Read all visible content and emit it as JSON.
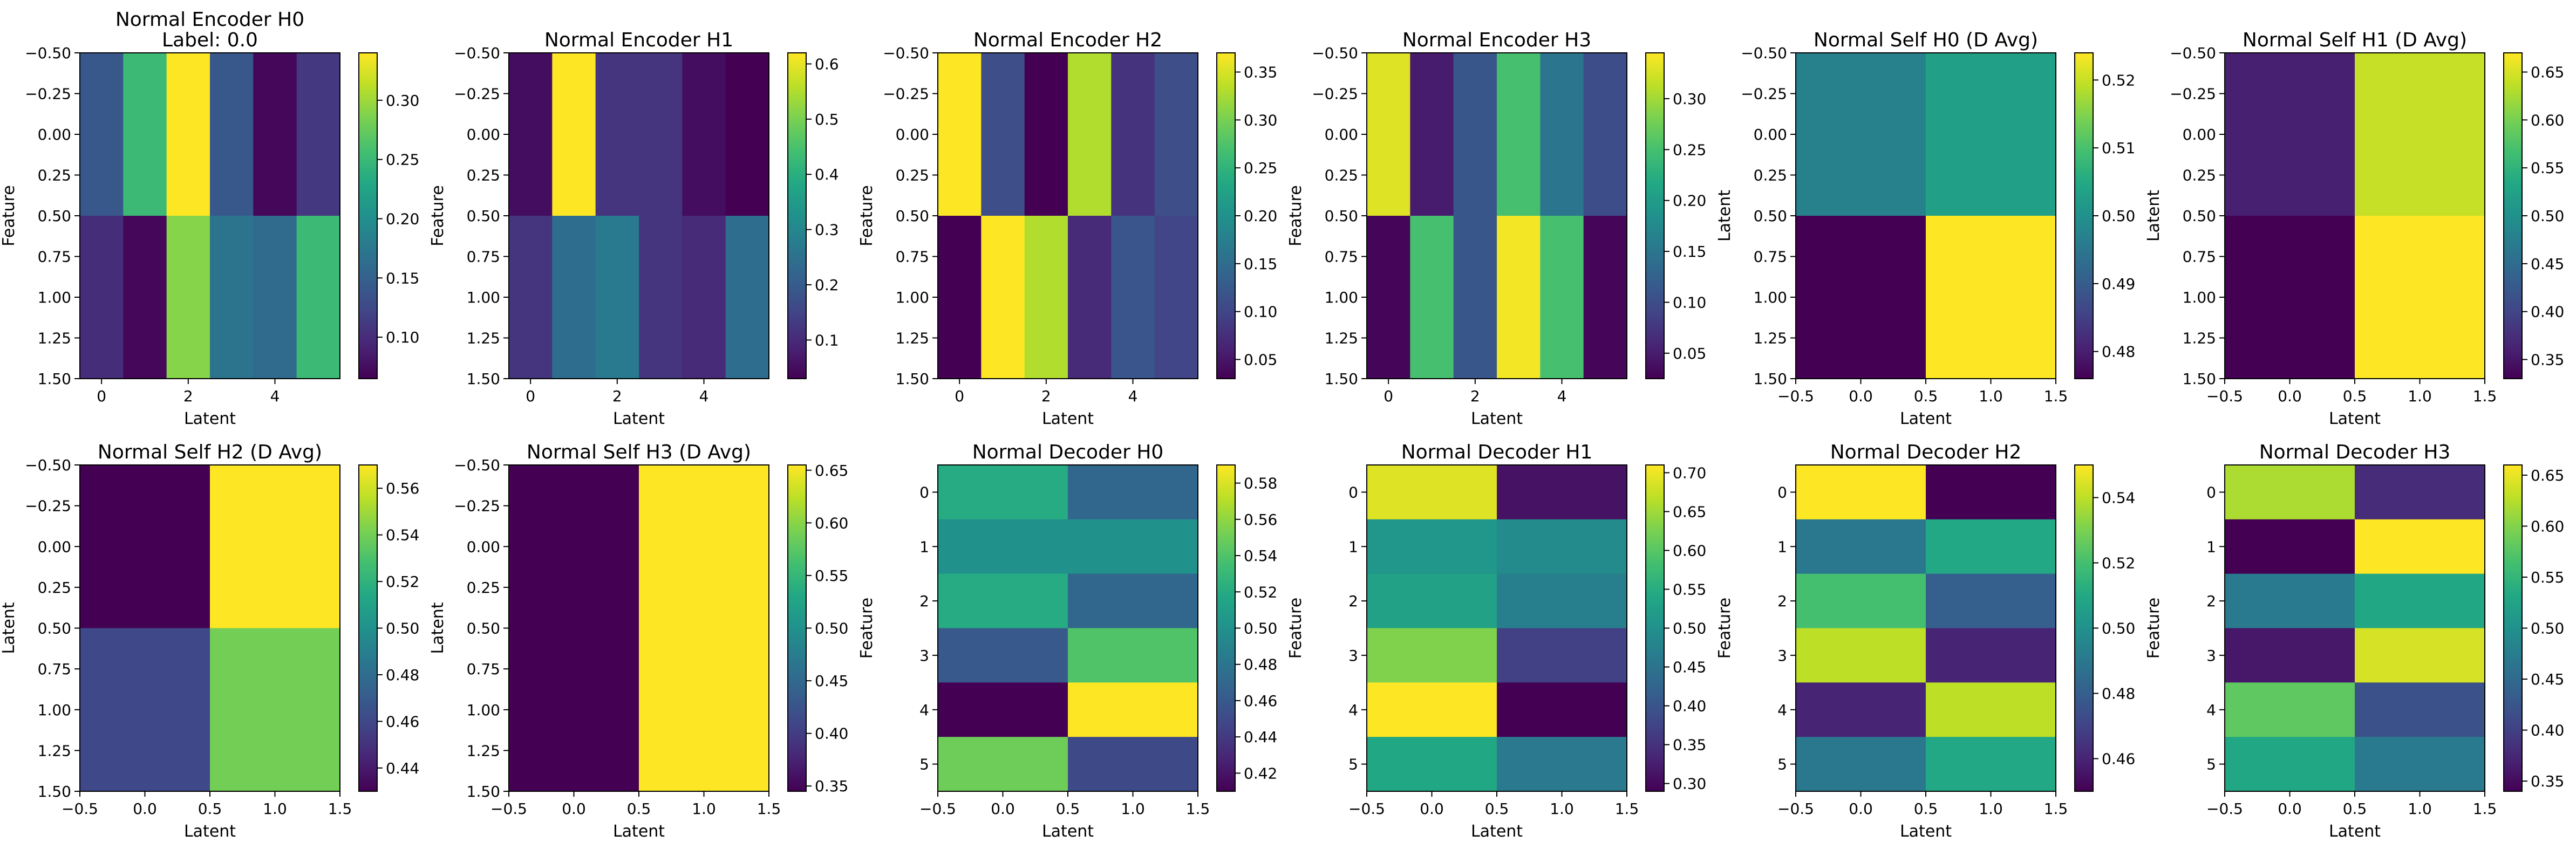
{
  "colormap": "viridis",
  "chart_data": [
    {
      "type": "heatmap",
      "title": "Normal Encoder H0",
      "subtitle": "Label: 0.0",
      "xlabel": "Latent",
      "ylabel": "Feature",
      "xlim": [
        -0.5,
        5.5
      ],
      "ylim": [
        1.5,
        -0.5
      ],
      "xticks": [
        0,
        2,
        4
      ],
      "xtick_labels": [
        "0",
        "2",
        "4"
      ],
      "yticks": [
        -0.5,
        -0.25,
        0,
        0.25,
        0.5,
        0.75,
        1,
        1.25,
        1.5
      ],
      "ytick_labels": [
        "−0.50",
        "−0.25",
        "0.00",
        "0.25",
        "0.50",
        "0.75",
        "1.00",
        "1.25",
        "1.50"
      ],
      "values": [
        [
          0.14,
          0.25,
          0.34,
          0.14,
          0.07,
          0.11
        ],
        [
          0.1,
          0.07,
          0.29,
          0.17,
          0.16,
          0.25
        ]
      ],
      "vmin": 0.065,
      "vmax": 0.34,
      "cbar_ticks": [
        0.1,
        0.15,
        0.2,
        0.25,
        0.3
      ],
      "cbar_labels": [
        "0.10",
        "0.15",
        "0.20",
        "0.25",
        "0.30"
      ]
    },
    {
      "type": "heatmap",
      "title": "Normal Encoder H1",
      "xlabel": "Latent",
      "ylabel": "Feature",
      "xlim": [
        -0.5,
        5.5
      ],
      "ylim": [
        1.5,
        -0.5
      ],
      "xticks": [
        0,
        2,
        4
      ],
      "xtick_labels": [
        "0",
        "2",
        "4"
      ],
      "yticks": [
        -0.5,
        -0.25,
        0,
        0.25,
        0.5,
        0.75,
        1,
        1.25,
        1.5
      ],
      "ytick_labels": [
        "−0.50",
        "−0.25",
        "0.00",
        "0.25",
        "0.50",
        "0.75",
        "1.00",
        "1.25",
        "1.50"
      ],
      "values": [
        [
          0.05,
          0.62,
          0.12,
          0.12,
          0.05,
          0.03
        ],
        [
          0.12,
          0.24,
          0.27,
          0.12,
          0.1,
          0.24
        ]
      ],
      "vmin": 0.03,
      "vmax": 0.62,
      "cbar_ticks": [
        0.1,
        0.2,
        0.3,
        0.4,
        0.5,
        0.6
      ],
      "cbar_labels": [
        "0.1",
        "0.2",
        "0.3",
        "0.4",
        "0.5",
        "0.6"
      ]
    },
    {
      "type": "heatmap",
      "title": "Normal Encoder H2",
      "xlabel": "Latent",
      "ylabel": "Feature",
      "xlim": [
        -0.5,
        5.5
      ],
      "ylim": [
        1.5,
        -0.5
      ],
      "xticks": [
        0,
        2,
        4
      ],
      "xtick_labels": [
        "0",
        "2",
        "4"
      ],
      "yticks": [
        -0.5,
        -0.25,
        0,
        0.25,
        0.5,
        0.75,
        1,
        1.25,
        1.5
      ],
      "ytick_labels": [
        "−0.50",
        "−0.25",
        "0.00",
        "0.25",
        "0.50",
        "0.75",
        "1.00",
        "1.25",
        "1.50"
      ],
      "values": [
        [
          0.37,
          0.11,
          0.03,
          0.33,
          0.08,
          0.11
        ],
        [
          0.03,
          0.37,
          0.33,
          0.07,
          0.12,
          0.1
        ]
      ],
      "vmin": 0.03,
      "vmax": 0.37,
      "cbar_ticks": [
        0.05,
        0.1,
        0.15,
        0.2,
        0.25,
        0.3,
        0.35
      ],
      "cbar_labels": [
        "0.05",
        "0.10",
        "0.15",
        "0.20",
        "0.25",
        "0.30",
        "0.35"
      ]
    },
    {
      "type": "heatmap",
      "title": "Normal Encoder H3",
      "xlabel": "Latent",
      "ylabel": "Feature",
      "xlim": [
        -0.5,
        5.5
      ],
      "ylim": [
        1.5,
        -0.5
      ],
      "xticks": [
        0,
        2,
        4
      ],
      "xtick_labels": [
        "0",
        "2",
        "4"
      ],
      "yticks": [
        -0.5,
        -0.25,
        0,
        0.25,
        0.5,
        0.75,
        1,
        1.25,
        1.5
      ],
      "ytick_labels": [
        "−0.50",
        "−0.25",
        "0.00",
        "0.25",
        "0.50",
        "0.75",
        "1.00",
        "1.25",
        "1.50"
      ],
      "values": [
        [
          0.33,
          0.05,
          0.11,
          0.25,
          0.15,
          0.1
        ],
        [
          0.03,
          0.25,
          0.11,
          0.34,
          0.25,
          0.03
        ]
      ],
      "vmin": 0.025,
      "vmax": 0.345,
      "cbar_ticks": [
        0.05,
        0.1,
        0.15,
        0.2,
        0.25,
        0.3
      ],
      "cbar_labels": [
        "0.05",
        "0.10",
        "0.15",
        "0.20",
        "0.25",
        "0.30"
      ]
    },
    {
      "type": "heatmap",
      "title": "Normal Self H0 (D Avg)",
      "xlabel": "Latent",
      "ylabel": "Latent",
      "xlim": [
        -0.5,
        1.5
      ],
      "ylim": [
        1.5,
        -0.5
      ],
      "xticks": [
        -0.5,
        0,
        0.5,
        1,
        1.5
      ],
      "xtick_labels": [
        "−0.5",
        "0.0",
        "0.5",
        "1.0",
        "1.5"
      ],
      "yticks": [
        -0.5,
        -0.25,
        0,
        0.25,
        0.5,
        0.75,
        1,
        1.25,
        1.5
      ],
      "ytick_labels": [
        "−0.50",
        "−0.25",
        "0.00",
        "0.25",
        "0.50",
        "0.75",
        "1.00",
        "1.25",
        "1.50"
      ],
      "values": [
        [
          0.497,
          0.503
        ],
        [
          0.476,
          0.524
        ]
      ],
      "vmin": 0.476,
      "vmax": 0.524,
      "cbar_ticks": [
        0.48,
        0.49,
        0.5,
        0.51,
        0.52
      ],
      "cbar_labels": [
        "0.48",
        "0.49",
        "0.50",
        "0.51",
        "0.52"
      ]
    },
    {
      "type": "heatmap",
      "title": "Normal Self H1 (D Avg)",
      "xlabel": "Latent",
      "ylabel": "Latent",
      "xlim": [
        -0.5,
        1.5
      ],
      "ylim": [
        1.5,
        -0.5
      ],
      "xticks": [
        -0.5,
        0,
        0.5,
        1,
        1.5
      ],
      "xtick_labels": [
        "−0.5",
        "0.0",
        "0.5",
        "1.0",
        "1.5"
      ],
      "yticks": [
        -0.5,
        -0.25,
        0,
        0.25,
        0.5,
        0.75,
        1,
        1.25,
        1.5
      ],
      "ytick_labels": [
        "−0.50",
        "−0.25",
        "0.00",
        "0.25",
        "0.50",
        "0.75",
        "1.00",
        "1.25",
        "1.50"
      ],
      "values": [
        [
          0.36,
          0.64
        ],
        [
          0.33,
          0.67
        ]
      ],
      "vmin": 0.33,
      "vmax": 0.67,
      "cbar_ticks": [
        0.35,
        0.4,
        0.45,
        0.5,
        0.55,
        0.6,
        0.65
      ],
      "cbar_labels": [
        "0.35",
        "0.40",
        "0.45",
        "0.50",
        "0.55",
        "0.60",
        "0.65"
      ]
    },
    {
      "type": "heatmap",
      "title": "Normal Self H2 (D Avg)",
      "xlabel": "Latent",
      "ylabel": "Latent",
      "xlim": [
        -0.5,
        1.5
      ],
      "ylim": [
        1.5,
        -0.5
      ],
      "xticks": [
        -0.5,
        0,
        0.5,
        1,
        1.5
      ],
      "xtick_labels": [
        "−0.5",
        "0.0",
        "0.5",
        "1.0",
        "1.5"
      ],
      "yticks": [
        -0.5,
        -0.25,
        0,
        0.25,
        0.5,
        0.75,
        1,
        1.25,
        1.5
      ],
      "ytick_labels": [
        "−0.50",
        "−0.25",
        "0.00",
        "0.25",
        "0.50",
        "0.75",
        "1.00",
        "1.25",
        "1.50"
      ],
      "values": [
        [
          0.43,
          0.57
        ],
        [
          0.46,
          0.54
        ]
      ],
      "vmin": 0.43,
      "vmax": 0.57,
      "cbar_ticks": [
        0.44,
        0.46,
        0.48,
        0.5,
        0.52,
        0.54,
        0.56
      ],
      "cbar_labels": [
        "0.44",
        "0.46",
        "0.48",
        "0.50",
        "0.52",
        "0.54",
        "0.56"
      ]
    },
    {
      "type": "heatmap",
      "title": "Normal Self H3 (D Avg)",
      "xlabel": "Latent",
      "ylabel": "Latent",
      "xlim": [
        -0.5,
        1.5
      ],
      "ylim": [
        1.5,
        -0.5
      ],
      "xticks": [
        -0.5,
        0,
        0.5,
        1,
        1.5
      ],
      "xtick_labels": [
        "−0.5",
        "0.0",
        "0.5",
        "1.0",
        "1.5"
      ],
      "yticks": [
        -0.5,
        -0.25,
        0,
        0.25,
        0.5,
        0.75,
        1,
        1.25,
        1.5
      ],
      "ytick_labels": [
        "−0.50",
        "−0.25",
        "0.00",
        "0.25",
        "0.50",
        "0.75",
        "1.00",
        "1.25",
        "1.50"
      ],
      "values": [
        [
          0.345,
          0.655
        ],
        [
          0.345,
          0.655
        ]
      ],
      "vmin": 0.345,
      "vmax": 0.655,
      "cbar_ticks": [
        0.35,
        0.4,
        0.45,
        0.5,
        0.55,
        0.6,
        0.65
      ],
      "cbar_labels": [
        "0.35",
        "0.40",
        "0.45",
        "0.50",
        "0.55",
        "0.60",
        "0.65"
      ]
    },
    {
      "type": "heatmap",
      "title": "Normal Decoder H0",
      "xlabel": "Latent",
      "ylabel": "Feature",
      "xlim": [
        -0.5,
        1.5
      ],
      "ylim": [
        5.5,
        -0.5
      ],
      "xticks": [
        -0.5,
        0,
        0.5,
        1,
        1.5
      ],
      "xtick_labels": [
        "−0.5",
        "0.0",
        "0.5",
        "1.0",
        "1.5"
      ],
      "yticks": [
        0,
        1,
        2,
        3,
        4,
        5
      ],
      "ytick_labels": [
        "0",
        "1",
        "2",
        "3",
        "4",
        "5"
      ],
      "values": [
        [
          0.52,
          0.47
        ],
        [
          0.5,
          0.5
        ],
        [
          0.52,
          0.47
        ],
        [
          0.46,
          0.54
        ],
        [
          0.41,
          0.59
        ],
        [
          0.55,
          0.45
        ]
      ],
      "vmin": 0.41,
      "vmax": 0.59,
      "cbar_ticks": [
        0.42,
        0.44,
        0.46,
        0.48,
        0.5,
        0.52,
        0.54,
        0.56,
        0.58
      ],
      "cbar_labels": [
        "0.42",
        "0.44",
        "0.46",
        "0.48",
        "0.50",
        "0.52",
        "0.54",
        "0.56",
        "0.58"
      ]
    },
    {
      "type": "heatmap",
      "title": "Normal Decoder H1",
      "xlabel": "Latent",
      "ylabel": "Feature",
      "xlim": [
        -0.5,
        1.5
      ],
      "ylim": [
        5.5,
        -0.5
      ],
      "xticks": [
        -0.5,
        0,
        0.5,
        1,
        1.5
      ],
      "xtick_labels": [
        "−0.5",
        "0.0",
        "0.5",
        "1.0",
        "1.5"
      ],
      "yticks": [
        0,
        1,
        2,
        3,
        4,
        5
      ],
      "ytick_labels": [
        "0",
        "1",
        "2",
        "3",
        "4",
        "5"
      ],
      "values": [
        [
          0.69,
          0.31
        ],
        [
          0.51,
          0.49
        ],
        [
          0.53,
          0.47
        ],
        [
          0.63,
          0.37
        ],
        [
          0.71,
          0.29
        ],
        [
          0.54,
          0.46
        ]
      ],
      "vmin": 0.29,
      "vmax": 0.71,
      "cbar_ticks": [
        0.3,
        0.35,
        0.4,
        0.45,
        0.5,
        0.55,
        0.6,
        0.65,
        0.7
      ],
      "cbar_labels": [
        "0.30",
        "0.35",
        "0.40",
        "0.45",
        "0.50",
        "0.55",
        "0.60",
        "0.65",
        "0.70"
      ]
    },
    {
      "type": "heatmap",
      "title": "Normal Decoder H2",
      "xlabel": "Latent",
      "ylabel": "Feature",
      "xlim": [
        -0.5,
        1.5
      ],
      "ylim": [
        5.5,
        -0.5
      ],
      "xticks": [
        -0.5,
        0,
        0.5,
        1,
        1.5
      ],
      "xtick_labels": [
        "−0.5",
        "0.0",
        "0.5",
        "1.0",
        "1.5"
      ],
      "yticks": [
        0,
        1,
        2,
        3,
        4,
        5
      ],
      "ytick_labels": [
        "0",
        "1",
        "2",
        "3",
        "4",
        "5"
      ],
      "values": [
        [
          0.55,
          0.45
        ],
        [
          0.49,
          0.51
        ],
        [
          0.52,
          0.48
        ],
        [
          0.54,
          0.46
        ],
        [
          0.46,
          0.54
        ],
        [
          0.49,
          0.51
        ]
      ],
      "vmin": 0.45,
      "vmax": 0.55,
      "cbar_ticks": [
        0.46,
        0.48,
        0.5,
        0.52,
        0.54
      ],
      "cbar_labels": [
        "0.46",
        "0.48",
        "0.50",
        "0.52",
        "0.54"
      ]
    },
    {
      "type": "heatmap",
      "title": "Normal Decoder H3",
      "xlabel": "Latent",
      "ylabel": "Feature",
      "xlim": [
        -0.5,
        1.5
      ],
      "ylim": [
        5.5,
        -0.5
      ],
      "xticks": [
        -0.5,
        0,
        0.5,
        1,
        1.5
      ],
      "xtick_labels": [
        "−0.5",
        "0.0",
        "0.5",
        "1.0",
        "1.5"
      ],
      "yticks": [
        0,
        1,
        2,
        3,
        4,
        5
      ],
      "ytick_labels": [
        "0",
        "1",
        "2",
        "3",
        "4",
        "5"
      ],
      "values": [
        [
          0.62,
          0.38
        ],
        [
          0.34,
          0.66
        ],
        [
          0.47,
          0.53
        ],
        [
          0.36,
          0.64
        ],
        [
          0.58,
          0.42
        ],
        [
          0.53,
          0.47
        ]
      ],
      "vmin": 0.34,
      "vmax": 0.66,
      "cbar_ticks": [
        0.35,
        0.4,
        0.45,
        0.5,
        0.55,
        0.6,
        0.65
      ],
      "cbar_labels": [
        "0.35",
        "0.40",
        "0.45",
        "0.50",
        "0.55",
        "0.60",
        "0.65"
      ]
    }
  ]
}
